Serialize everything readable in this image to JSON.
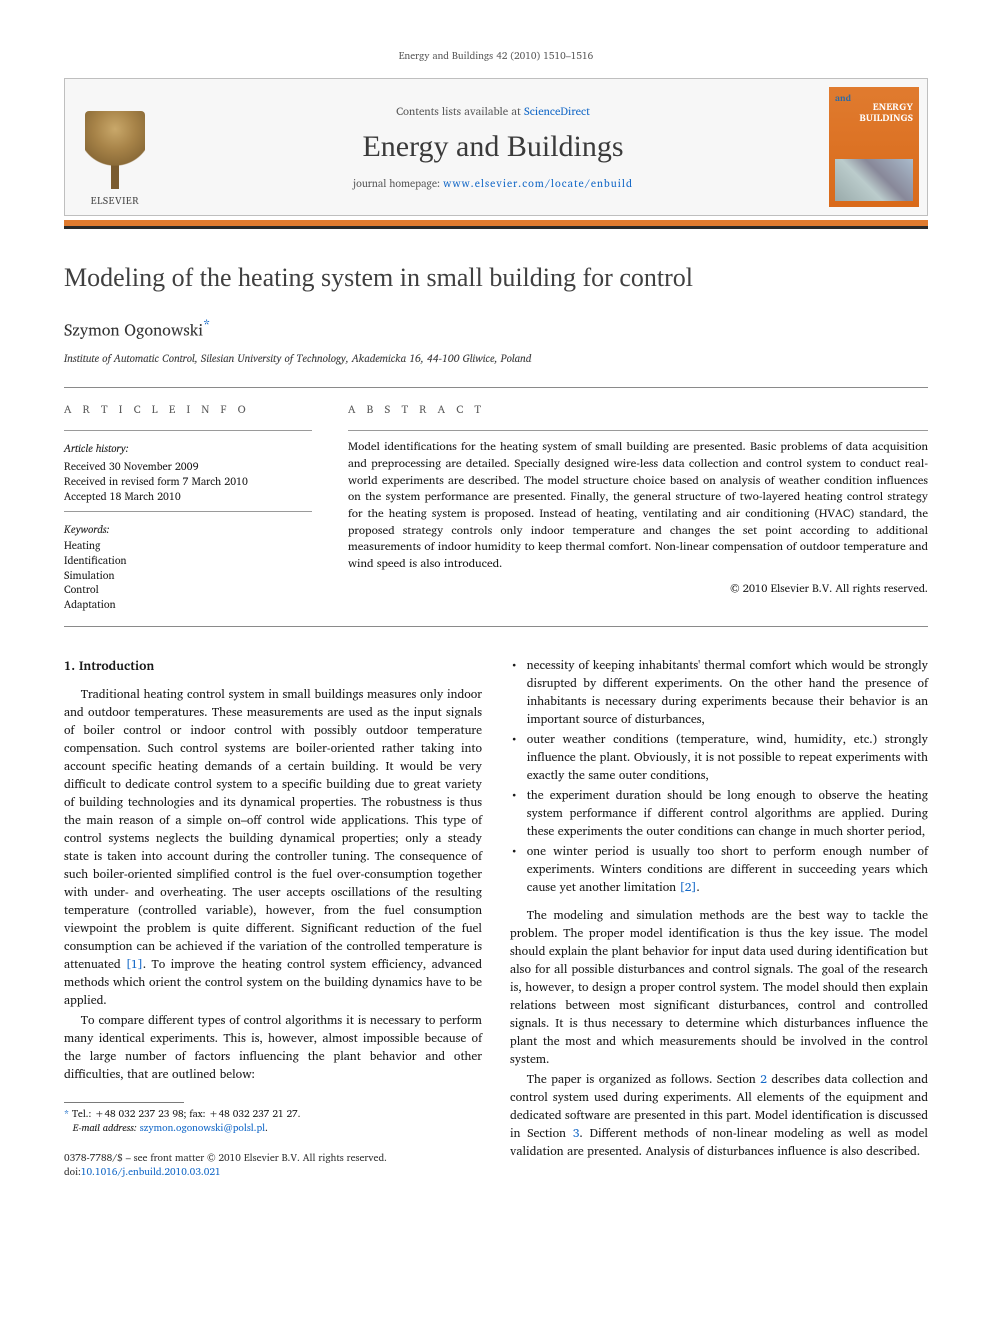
{
  "runningHead": "Energy and Buildings 42 (2010) 1510–1516",
  "header": {
    "contentsPrefix": "Contents lists available at ",
    "contentsLink": "ScienceDirect",
    "journalTitle": "Energy and Buildings",
    "homepagePrefix": "journal homepage: ",
    "homepageUrl": "www.elsevier.com/locate/enbuild",
    "publisher": "ELSEVIER",
    "cover": {
      "and": "and",
      "line1": "ENERGY",
      "line2": "BUILDINGS"
    }
  },
  "colors": {
    "accentOrange": "#e07b2f",
    "linkBlue": "#1569c7",
    "ruleGrey": "#8a8a8a",
    "textGrey": "#5a5a5a"
  },
  "article": {
    "title": "Modeling of the heating system in small building for control",
    "author": "Szymon Ogonowski",
    "corrMark": "*",
    "affiliation": "Institute of Automatic Control, Silesian University of Technology, Akademicka 16, 44-100 Gliwice, Poland"
  },
  "info": {
    "label": "A R T I C L E   I N F O",
    "historyHead": "Article history:",
    "history": [
      "Received 30 November 2009",
      "Received in revised form 7 March 2010",
      "Accepted 18 March 2010"
    ],
    "keywordsHead": "Keywords:",
    "keywords": [
      "Heating",
      "Identification",
      "Simulation",
      "Control",
      "Adaptation"
    ]
  },
  "abstract": {
    "label": "A B S T R A C T",
    "text": "Model identifications for the heating system of small building are presented. Basic problems of data acquisition and preprocessing are detailed. Specially designed wire-less data collection and control system to conduct real-world experiments are described. The model structure choice based on analysis of weather condition influences on the system performance are presented. Finally, the general structure of two-layered heating control strategy for the heating system is proposed. Instead of heating, ventilating and air conditioning (HVAC) standard, the proposed strategy controls only indoor temperature and changes the set point according to additional measurements of indoor humidity to keep thermal comfort. Non-linear compensation of outdoor temperature and wind speed is also introduced.",
    "copyright": "© 2010 Elsevier B.V. All rights reserved."
  },
  "body": {
    "introHead": "1.  Introduction",
    "p1": "Traditional heating control system in small buildings measures only indoor and outdoor temperatures. These measurements are used as the input signals of boiler control or indoor control with possibly outdoor temperature compensation. Such control systems are boiler-oriented rather taking into account specific heating demands of a certain building. It would be very difficult to dedicate control system to a specific building due to great variety of building technologies and its dynamical properties. The robustness is thus the main reason of a simple on–off control wide applications. This type of control systems neglects the building dynamical properties; only a steady state is taken into account during the controller tuning. The consequence of such boiler-oriented simplified control is the fuel over-consumption together with under- and overheating. The user accepts oscillations of the resulting temperature (controlled variable), however, from the fuel consumption viewpoint the problem is quite different. Significant reduction of the fuel consumption can be achieved if the variation of the controlled temperature is attenuated ",
    "ref1": "[1]",
    "p1b": ". To improve the heating control system efficiency, advanced methods which orient the control system on the building dynamics have to be applied.",
    "p2": "To compare different types of control algorithms it is necessary to perform many identical experiments. This is, however, almost impossible because of the large number of factors influencing the plant behavior and other difficulties, that are outlined below:",
    "bullets": [
      "necessity of keeping inhabitants' thermal comfort which would be strongly disrupted by different experiments. On the other hand the presence of inhabitants is necessary during experiments because their behavior is an important source of disturbances,",
      "outer weather conditions (temperature, wind, humidity, etc.) strongly influence the plant. Obviously, it is not possible to repeat experiments with exactly the same outer conditions,",
      "the experiment duration should be long enough to observe the heating system performance if different control algorithms are applied. During these experiments the outer conditions can change in much shorter period,"
    ],
    "bullet4a": "one winter period is usually too short to perform enough number of experiments. Winters conditions are different in succeeding years which cause yet another limitation ",
    "ref2": "[2]",
    "bullet4b": ".",
    "p3": "The modeling and simulation methods are the best way to tackle the problem. The proper model identification is thus the key issue. The model should explain the plant behavior for input data used during identification but also for all possible disturbances and control signals. The goal of the research is, however, to design a proper control system. The model should then explain relations between most significant disturbances, control and controlled signals. It is thus necessary to determine which disturbances influence the plant the most and which measurements should be involved in the control system.",
    "p4a": "The paper is organized as follows. Section ",
    "refS2": "2",
    "p4b": " describes data collection and control system used during experiments. All elements of the equipment and dedicated software are presented in this part. Model identification is discussed in Section ",
    "refS3": "3",
    "p4c": ". Different methods of non-linear modeling as well as model validation are presented. Analysis of disturbances influence is also described."
  },
  "footnote": {
    "tel": "Tel.: +48 032 237 23 98; fax: +48 032 237 21 27.",
    "emailLabel": "E-mail address:",
    "email": "szymon.ogonowski@polsl.pl"
  },
  "footer": {
    "line1": "0378-7788/$ – see front matter © 2010 Elsevier B.V. All rights reserved.",
    "doiLabel": "doi:",
    "doi": "10.1016/j.enbuild.2010.03.021"
  }
}
